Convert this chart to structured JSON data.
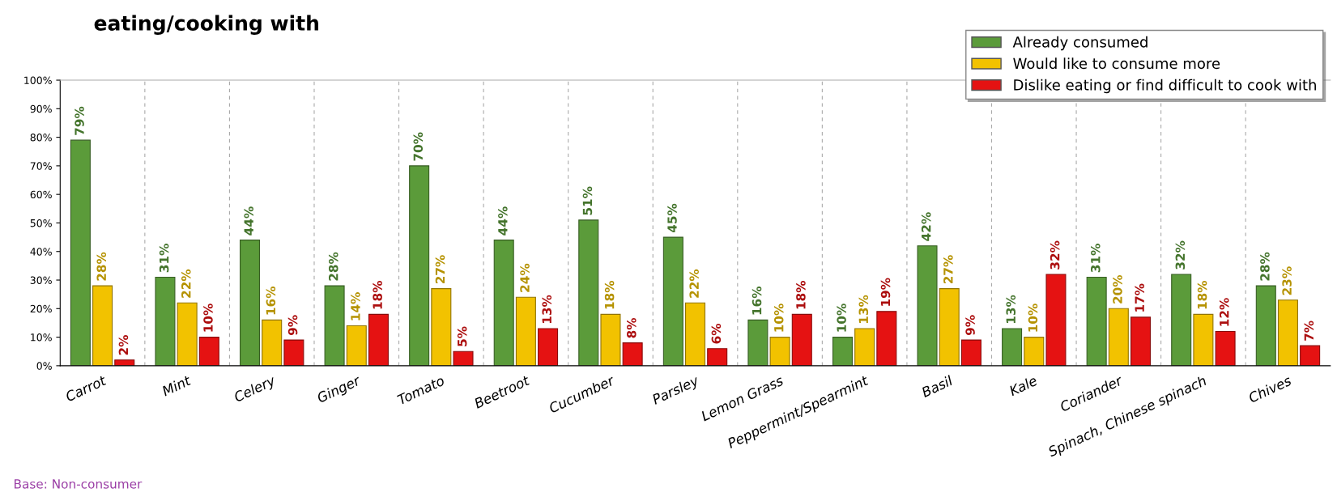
{
  "chart_data": {
    "type": "bar",
    "title": "eating/cooking with",
    "categories": [
      "Carrot",
      "Mint",
      "Celery",
      "Ginger",
      "Tomato",
      "Beetroot",
      "Cucumber",
      "Parsley",
      "Lemon Grass",
      "Peppermint/Spearmint",
      "Basil",
      "Kale",
      "Coriander",
      "Spinach, Chinese spinach",
      "Chives"
    ],
    "series": [
      {
        "name": "Already consumed",
        "color": "#5b9b3a",
        "values": [
          79,
          31,
          44,
          28,
          70,
          44,
          51,
          45,
          16,
          10,
          42,
          13,
          31,
          32,
          28
        ],
        "value_labels": [
          "79%",
          "31%",
          "44%",
          "28%",
          "70%",
          "44%",
          "51%",
          "45%",
          "16%",
          "10%",
          "42%",
          "13%",
          "31%",
          "32%",
          "28%"
        ]
      },
      {
        "name": "Would like to consume more",
        "color": "#f2c200",
        "values": [
          28,
          22,
          16,
          14,
          27,
          24,
          18,
          22,
          10,
          13,
          27,
          10,
          20,
          18,
          23
        ],
        "value_labels": [
          "28%",
          "22%",
          "16%",
          "14%",
          "27%",
          "24%",
          "18%",
          "22%",
          "10%",
          "13%",
          "27%",
          "10%",
          "20%",
          "18%",
          "23%"
        ]
      },
      {
        "name": "Dislike eating or find difficult to cook with",
        "color": "#e51212",
        "values": [
          2,
          10,
          9,
          18,
          5,
          13,
          8,
          6,
          18,
          19,
          9,
          32,
          17,
          12,
          7
        ],
        "value_labels": [
          "2%",
          "10%",
          "9%",
          "18%",
          "5%",
          "13%",
          "8%",
          "6%",
          "18%",
          "19%",
          "9%",
          "32%",
          "17%",
          "12%",
          "7%"
        ]
      }
    ],
    "ylim": [
      0,
      100
    ],
    "yticks": [
      {
        "value": 0,
        "label": "0%"
      },
      {
        "value": 10,
        "label": "10%"
      },
      {
        "value": 20,
        "label": "20%"
      },
      {
        "value": 30,
        "label": "30%"
      },
      {
        "value": 40,
        "label": "40%"
      },
      {
        "value": 50,
        "label": "50%"
      },
      {
        "value": 60,
        "label": "60%"
      },
      {
        "value": 70,
        "label": "70%"
      },
      {
        "value": 80,
        "label": "80%"
      },
      {
        "value": 90,
        "label": "90%"
      },
      {
        "value": 100,
        "label": "100%"
      }
    ],
    "legend": "top right",
    "grid": false,
    "annotations": [
      "Base: Non-consumer"
    ]
  }
}
